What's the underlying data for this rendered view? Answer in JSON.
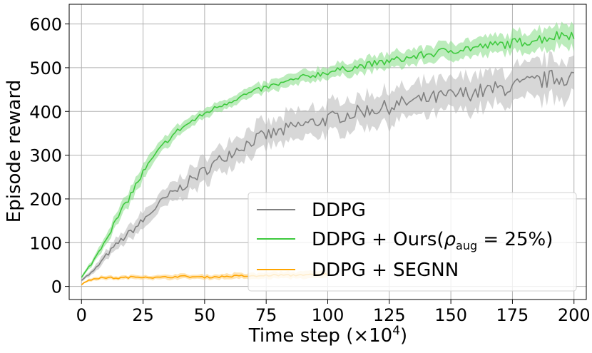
{
  "chart_data": {
    "type": "line",
    "title": "",
    "xlabel": "Time step (×10",
    "xlabel_exponent": "4",
    "xlabel_suffix": ")",
    "ylabel": "Episode reward",
    "xlim": [
      -5,
      205
    ],
    "ylim": [
      -30,
      645
    ],
    "xticks": [
      0,
      25,
      50,
      75,
      100,
      125,
      150,
      175,
      200
    ],
    "yticks": [
      0,
      100,
      200,
      300,
      400,
      500,
      600
    ],
    "grid": true,
    "legend_position": "lower-right",
    "series": [
      {
        "name": "DDPG",
        "color": "#808080",
        "band_color": "#bdbdbd",
        "x": [
          0,
          5,
          10,
          15,
          20,
          25,
          30,
          35,
          40,
          45,
          50,
          55,
          60,
          65,
          70,
          75,
          80,
          85,
          90,
          95,
          100,
          105,
          110,
          115,
          120,
          125,
          130,
          135,
          140,
          145,
          150,
          155,
          160,
          165,
          170,
          175,
          180,
          185,
          190,
          195,
          200
        ],
        "values": [
          15,
          35,
          70,
          100,
          125,
          150,
          180,
          205,
          225,
          245,
          265,
          285,
          305,
          320,
          335,
          345,
          352,
          362,
          370,
          376,
          382,
          390,
          395,
          402,
          406,
          410,
          418,
          423,
          428,
          432,
          436,
          440,
          444,
          448,
          452,
          456,
          462,
          468,
          474,
          478,
          480
        ],
        "band": [
          3,
          8,
          12,
          15,
          18,
          20,
          22,
          24,
          26,
          28,
          30,
          30,
          32,
          32,
          33,
          34,
          34,
          35,
          35,
          36,
          36,
          37,
          37,
          38,
          38,
          38,
          39,
          39,
          40,
          40,
          40,
          41,
          41,
          42,
          42,
          43,
          44,
          45,
          46,
          47,
          48
        ]
      },
      {
        "name": "DDPG + Ours(ρaug = 25%)",
        "color": "#3ec93e",
        "band_color": "#8fe08f",
        "x": [
          0,
          5,
          10,
          15,
          20,
          25,
          30,
          35,
          40,
          45,
          50,
          55,
          60,
          65,
          70,
          75,
          80,
          85,
          90,
          95,
          100,
          105,
          110,
          115,
          120,
          125,
          130,
          135,
          140,
          145,
          150,
          155,
          160,
          165,
          170,
          175,
          180,
          185,
          190,
          195,
          200
        ],
        "values": [
          20,
          60,
          110,
          160,
          210,
          260,
          300,
          335,
          360,
          378,
          395,
          410,
          422,
          435,
          445,
          455,
          462,
          470,
          478,
          484,
          490,
          495,
          500,
          505,
          510,
          515,
          520,
          525,
          530,
          535,
          540,
          543,
          546,
          550,
          553,
          556,
          560,
          565,
          570,
          575,
          578
        ],
        "band": [
          3,
          8,
          12,
          15,
          18,
          18,
          16,
          15,
          14,
          13,
          12,
          12,
          12,
          12,
          13,
          13,
          14,
          14,
          15,
          15,
          16,
          16,
          17,
          17,
          18,
          18,
          19,
          19,
          20,
          20,
          21,
          21,
          22,
          22,
          23,
          24,
          25,
          26,
          27,
          28,
          29
        ]
      },
      {
        "name": "DDPG + SEGNN",
        "color": "#ffa500",
        "band_color": "#ffd27f",
        "x": [
          0,
          5,
          10,
          15,
          20,
          25,
          30,
          35,
          40,
          45,
          50,
          55,
          60,
          65,
          70,
          75,
          80,
          85,
          90,
          95,
          100
        ],
        "values": [
          5,
          18,
          20,
          19,
          21,
          22,
          20,
          21,
          23,
          22,
          21,
          22,
          23,
          24,
          23,
          25,
          26,
          25,
          27,
          26,
          28
        ],
        "band": [
          2,
          4,
          5,
          5,
          5,
          6,
          5,
          6,
          6,
          6,
          6,
          6,
          7,
          7,
          7,
          8,
          8,
          8,
          9,
          9,
          10
        ]
      }
    ]
  }
}
